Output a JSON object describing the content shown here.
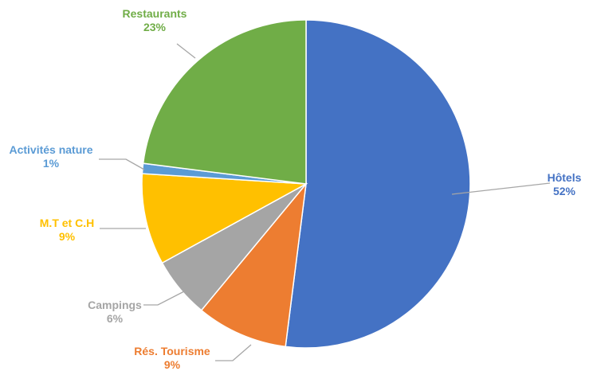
{
  "chart_data": {
    "type": "pie",
    "start_angle_deg": 0,
    "direction": "clockwise",
    "slices": [
      {
        "category": "Hôtels",
        "value": 52,
        "label": "52%",
        "color": "#4472C4"
      },
      {
        "category": "Rés. Tourisme",
        "value": 9,
        "label": "9%",
        "color": "#ED7D31"
      },
      {
        "category": "Campings",
        "value": 6,
        "label": "6%",
        "color": "#A5A5A5"
      },
      {
        "category": "M.T et C.H",
        "value": 9,
        "label": "9%",
        "color": "#FFC000"
      },
      {
        "category": "Activités nature",
        "value": 1,
        "label": "1%",
        "color": "#5B9BD5"
      },
      {
        "category": "Restaurants",
        "value": 23,
        "label": "23%",
        "color": "#70AD47"
      }
    ],
    "data_labels": "outside with leader lines",
    "legend": "none"
  }
}
